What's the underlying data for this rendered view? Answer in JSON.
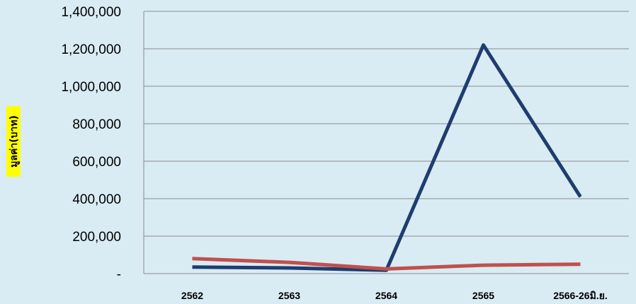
{
  "chart_data": {
    "type": "line",
    "title": "",
    "xlabel": "",
    "ylabel": "มูลค่า(บาท)",
    "categories": [
      "2562",
      "2563",
      "2564",
      "2565",
      "2566-26มิ.ย."
    ],
    "y_tick_labels": [
      "-",
      "200,000",
      "400,000",
      "600,000",
      "800,000",
      "1,000,000",
      "1,200,000",
      "1,400,000"
    ],
    "ylim": [
      0,
      1400000
    ],
    "grid": true,
    "legend": "none",
    "ylabel_highlight": "#ffff00",
    "series": [
      {
        "color": "#1f3d6e",
        "values": [
          35000,
          30000,
          18000,
          1220000,
          410000
        ]
      },
      {
        "color": "#c0504d",
        "values": [
          80000,
          60000,
          25000,
          45000,
          50000
        ]
      }
    ]
  }
}
